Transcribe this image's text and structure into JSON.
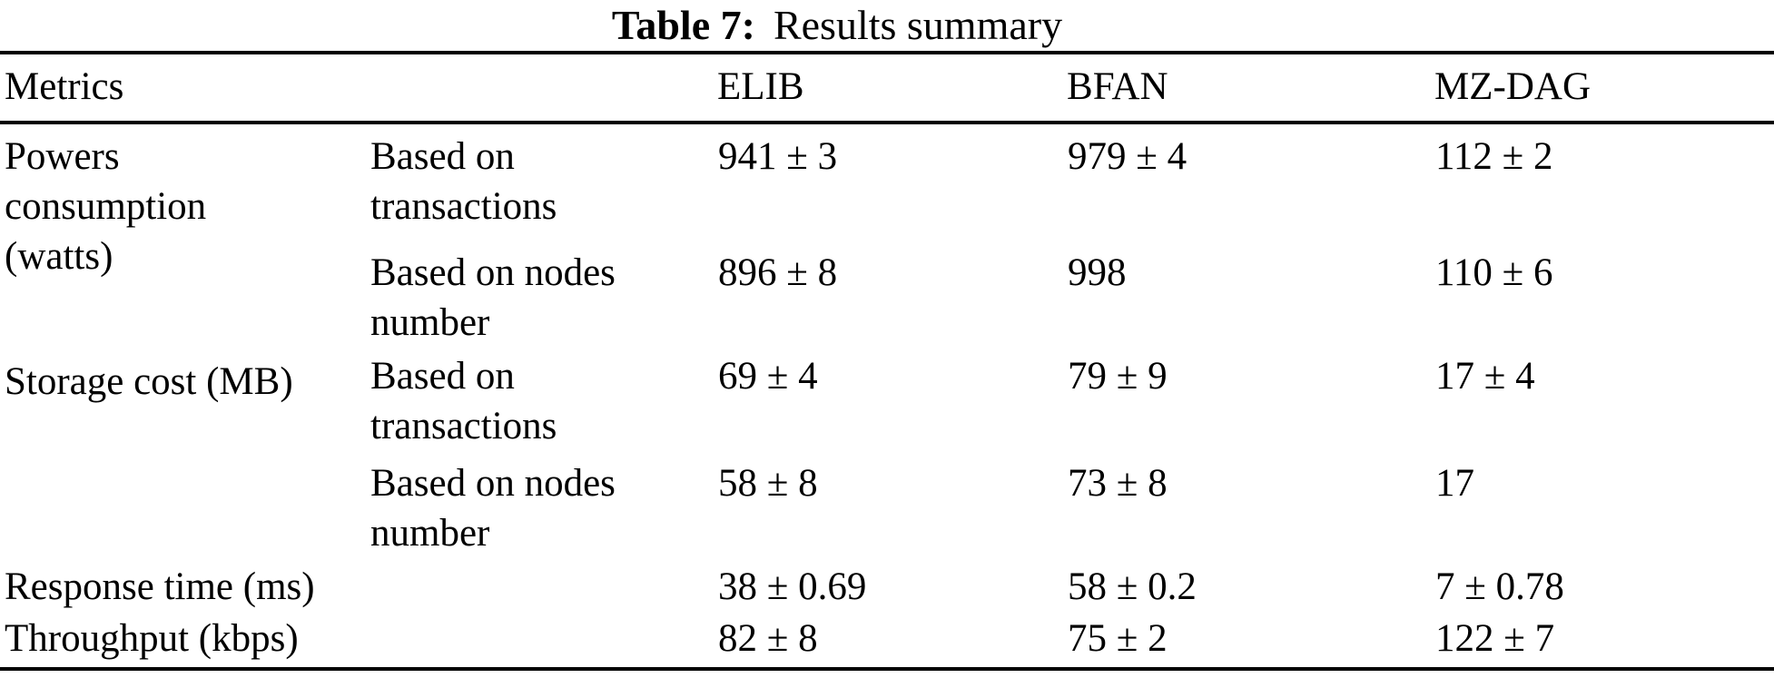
{
  "caption": {
    "label": "Table 7:",
    "text": "Results summary"
  },
  "table": {
    "header": {
      "metrics": "Metrics",
      "elib": "ELIB",
      "bfan": "BFAN",
      "mzdag": "MZ-DAG"
    },
    "rows": [
      {
        "metric": "Powers\nconsumption\n(watts)",
        "sub": "Based on\ntransactions",
        "elib": "941 ± 3",
        "bfan": "979 ± 4",
        "mzdag": "112 ± 2"
      },
      {
        "sub": "Based on nodes\nnumber",
        "elib": "896 ± 8",
        "bfan": "998",
        "mzdag": "110 ± 6"
      },
      {
        "metric": "Storage cost (MB)",
        "sub": "Based on\ntransactions",
        "elib": "69 ± 4",
        "bfan": "79 ± 9",
        "mzdag": "17 ± 4"
      },
      {
        "sub": "Based on nodes\nnumber",
        "elib": "58 ± 8",
        "bfan": "73 ± 8",
        "mzdag": "17"
      },
      {
        "metric": "Response time (ms)",
        "elib": "38 ± 0.69",
        "bfan": "58 ± 0.2",
        "mzdag": "7 ± 0.78"
      },
      {
        "metric": "Throughput (kbps)",
        "elib": "82 ± 8",
        "bfan": "75 ± 2",
        "mzdag": "122 ± 7"
      }
    ]
  },
  "chart_data": {
    "type": "table",
    "title": "Table 7: Results summary",
    "columns": [
      "Metrics",
      "",
      "ELIB",
      "BFAN",
      "MZ-DAG"
    ],
    "rows": [
      [
        "Powers consumption (watts)",
        "Based on transactions",
        "941 ± 3",
        "979 ± 4",
        "112 ± 2"
      ],
      [
        "Powers consumption (watts)",
        "Based on nodes number",
        "896 ± 8",
        "998",
        "110 ± 6"
      ],
      [
        "Storage cost (MB)",
        "Based on transactions",
        "69 ± 4",
        "79 ± 9",
        "17 ± 4"
      ],
      [
        "Storage cost (MB)",
        "Based on nodes number",
        "58 ± 8",
        "73 ± 8",
        "17"
      ],
      [
        "Response time (ms)",
        "",
        "38 ± 0.69",
        "58 ± 0.2",
        "7 ± 0.78"
      ],
      [
        "Throughput (kbps)",
        "",
        "82 ± 8",
        "75 ± 2",
        "122 ± 7"
      ]
    ]
  }
}
